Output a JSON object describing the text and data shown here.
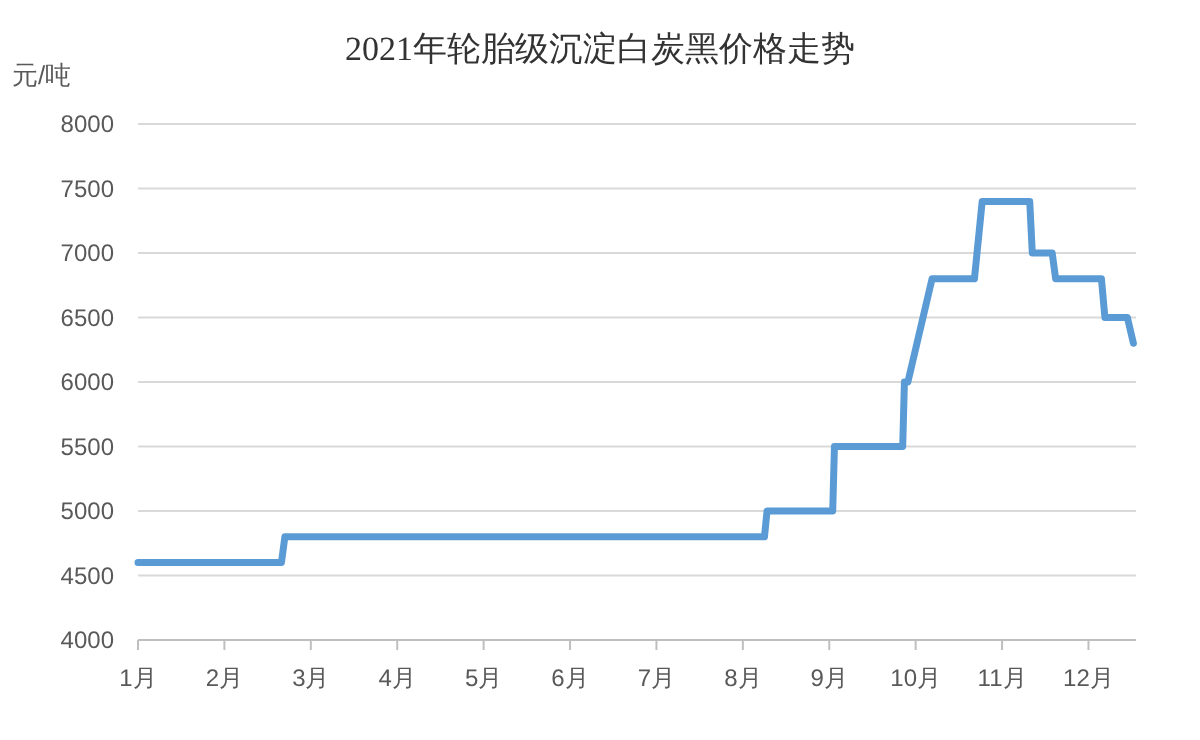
{
  "chart_data": {
    "type": "line",
    "title": "2021年轮胎级沉淀白炭黑价格走势",
    "ylabel": "元/吨",
    "x": [
      1,
      2.66,
      2.7,
      8.25,
      8.28,
      9.04,
      9.06,
      9.85,
      9.87,
      9.91,
      10.19,
      10.68,
      10.77,
      11.32,
      11.35,
      11.58,
      11.62,
      12.15,
      12.19,
      12.45,
      12.52
    ],
    "series": [
      {
        "color": "#5b9bd5",
        "values": [
          4600,
          4600,
          4800,
          4800,
          5000,
          5000,
          5500,
          5500,
          6000,
          6000,
          6800,
          6800,
          7400,
          7400,
          7000,
          7000,
          6800,
          6800,
          6500,
          6500,
          6300
        ]
      }
    ],
    "xlim": [
      1,
      12.55
    ],
    "xticks": [
      {
        "value": 1,
        "label": "1月"
      },
      {
        "value": 2,
        "label": "2月"
      },
      {
        "value": 3,
        "label": "3月"
      },
      {
        "value": 4,
        "label": "4月"
      },
      {
        "value": 5,
        "label": "5月"
      },
      {
        "value": 6,
        "label": "6月"
      },
      {
        "value": 7,
        "label": "7月"
      },
      {
        "value": 8,
        "label": "8月"
      },
      {
        "value": 9,
        "label": "9月"
      },
      {
        "value": 10,
        "label": "10月"
      },
      {
        "value": 11,
        "label": "11月"
      },
      {
        "value": 12,
        "label": "12月"
      }
    ],
    "ylim": [
      4000,
      8000
    ],
    "yticks": [
      4000,
      4500,
      5000,
      5500,
      6000,
      6500,
      7000,
      7500,
      8000
    ],
    "grid": "y",
    "marker": "none",
    "line_style": "solid"
  }
}
